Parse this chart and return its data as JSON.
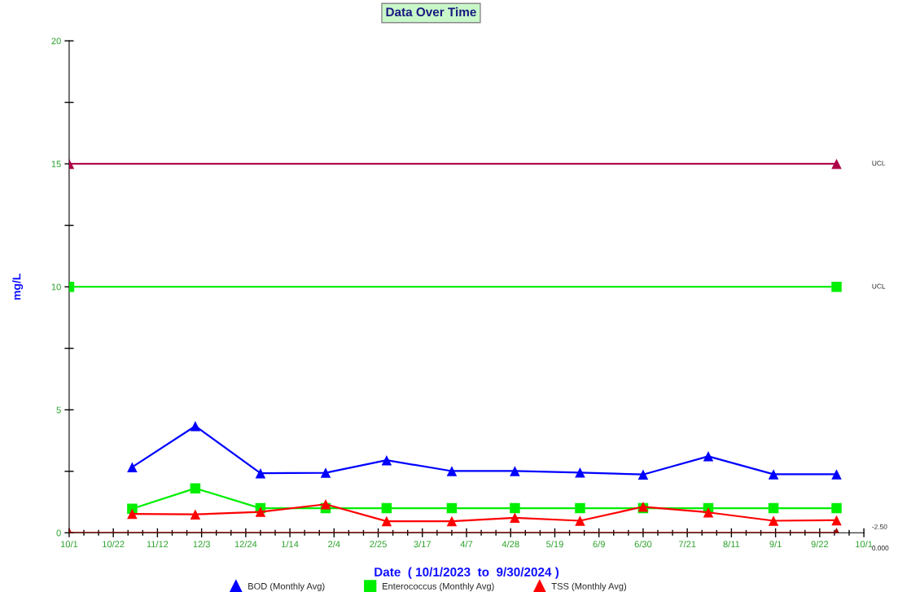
{
  "chart_data": {
    "type": "line",
    "title": "Data Over Time",
    "xlabel": "Date  ( 10/1/2023  to  9/30/2024 )",
    "ylabel": "mg/L",
    "x": [
      "2023-10-31",
      "2023-11-30",
      "2023-12-31",
      "2024-01-31",
      "2024-02-29",
      "2024-03-31",
      "2024-04-30",
      "2024-05-31",
      "2024-06-30",
      "2024-07-31",
      "2024-08-31",
      "2024-09-30"
    ],
    "series": [
      {
        "name": "BOD (Monthly Avg)",
        "color": "#0000ff",
        "marker": "triangle",
        "values": [
          2.67,
          4.34,
          2.42,
          2.44,
          2.95,
          2.51,
          2.51,
          2.45,
          2.37,
          3.11,
          2.38,
          2.38
        ]
      },
      {
        "name": "Enterococcus (Monthly Avg)",
        "color": "#00ee00",
        "marker": "square",
        "values": [
          0.98,
          1.81,
          1.0,
          1.0,
          1.0,
          1.0,
          1.0,
          1.0,
          1.0,
          1.0,
          1.0,
          1.0
        ]
      },
      {
        "name": "TSS (Monthly Avg)",
        "color": "#ff0000",
        "marker": "triangle",
        "values": [
          0.77,
          0.75,
          0.85,
          1.16,
          0.47,
          0.47,
          0.61,
          0.49,
          1.06,
          0.83,
          0.49,
          0.51
        ]
      },
      {
        "color": "#b0004a",
        "marker": "triangle",
        "x": [
          "2023-10-01",
          "2024-09-30"
        ],
        "values": [
          15,
          15
        ]
      },
      {
        "color": "#00ee00",
        "marker": "square",
        "x": [
          "2023-10-01",
          "2024-09-30"
        ],
        "values": [
          10,
          10
        ]
      },
      {
        "color": "#a00000",
        "marker": "triangle",
        "x": [
          "2023-10-01",
          "2024-09-30"
        ],
        "values": [
          0,
          0
        ]
      }
    ],
    "annotations": [
      "UCL",
      "UCL",
      "-2.50",
      "0.000"
    ],
    "ylim": [
      0,
      20
    ],
    "yticks": [
      0,
      {
        "value": 2.5,
        "label": null
      },
      5,
      {
        "value": 7.5,
        "label": null
      },
      10,
      {
        "value": 12.5,
        "label": null
      },
      15,
      {
        "value": 17.5,
        "label": null
      },
      20
    ],
    "xlim": [
      "2023-10-01",
      "2024-10-13"
    ],
    "xticks": [
      {
        "value": "2023-10-01",
        "label": "10/1"
      },
      {
        "value": "2023-10-08",
        "label": null
      },
      {
        "value": "2023-10-15",
        "label": null
      },
      {
        "value": "2023-10-22",
        "label": "10/22"
      },
      {
        "value": "2023-10-29",
        "label": null
      },
      {
        "value": "2023-11-05",
        "label": null
      },
      {
        "value": "2023-11-12",
        "label": "11/12"
      },
      {
        "value": "2023-11-19",
        "label": null
      },
      {
        "value": "2023-11-26",
        "label": null
      },
      {
        "value": "2023-12-03",
        "label": "12/3"
      },
      {
        "value": "2023-12-10",
        "label": null
      },
      {
        "value": "2023-12-17",
        "label": null
      },
      {
        "value": "2023-12-24",
        "label": "12/24"
      },
      {
        "value": "2023-12-31",
        "label": null
      },
      {
        "value": "2024-01-07",
        "label": null
      },
      {
        "value": "2024-01-14",
        "label": "1/14"
      },
      {
        "value": "2024-01-21",
        "label": null
      },
      {
        "value": "2024-01-28",
        "label": null
      },
      {
        "value": "2024-02-04",
        "label": "2/4"
      },
      {
        "value": "2024-02-11",
        "label": null
      },
      {
        "value": "2024-02-18",
        "label": null
      },
      {
        "value": "2024-02-25",
        "label": "2/25"
      },
      {
        "value": "2024-03-03",
        "label": null
      },
      {
        "value": "2024-03-10",
        "label": null
      },
      {
        "value": "2024-03-17",
        "label": "3/17"
      },
      {
        "value": "2024-03-24",
        "label": null
      },
      {
        "value": "2024-03-31",
        "label": null
      },
      {
        "value": "2024-04-07",
        "label": "4/7"
      },
      {
        "value": "2024-04-14",
        "label": null
      },
      {
        "value": "2024-04-21",
        "label": null
      },
      {
        "value": "2024-04-28",
        "label": "4/28"
      },
      {
        "value": "2024-05-05",
        "label": null
      },
      {
        "value": "2024-05-12",
        "label": null
      },
      {
        "value": "2024-05-19",
        "label": "5/19"
      },
      {
        "value": "2024-05-26",
        "label": null
      },
      {
        "value": "2024-06-02",
        "label": null
      },
      {
        "value": "2024-06-09",
        "label": "6/9"
      },
      {
        "value": "2024-06-16",
        "label": null
      },
      {
        "value": "2024-06-23",
        "label": null
      },
      {
        "value": "2024-06-30",
        "label": "6/30"
      },
      {
        "value": "2024-07-07",
        "label": null
      },
      {
        "value": "2024-07-14",
        "label": null
      },
      {
        "value": "2024-07-21",
        "label": "7/21"
      },
      {
        "value": "2024-07-28",
        "label": null
      },
      {
        "value": "2024-08-04",
        "label": null
      },
      {
        "value": "2024-08-11",
        "label": "8/11"
      },
      {
        "value": "2024-08-18",
        "label": null
      },
      {
        "value": "2024-08-25",
        "label": null
      },
      {
        "value": "2024-09-01",
        "label": "9/1"
      },
      {
        "value": "2024-09-08",
        "label": null
      },
      {
        "value": "2024-09-15",
        "label": null
      },
      {
        "value": "2024-09-22",
        "label": "9/22"
      },
      {
        "value": "2024-09-29",
        "label": null
      },
      {
        "value": "2024-10-06",
        "label": null
      },
      {
        "value": "2024-10-13",
        "label": "10/1"
      }
    ],
    "grid": false,
    "legend": "bottom",
    "line_style": "solid"
  }
}
